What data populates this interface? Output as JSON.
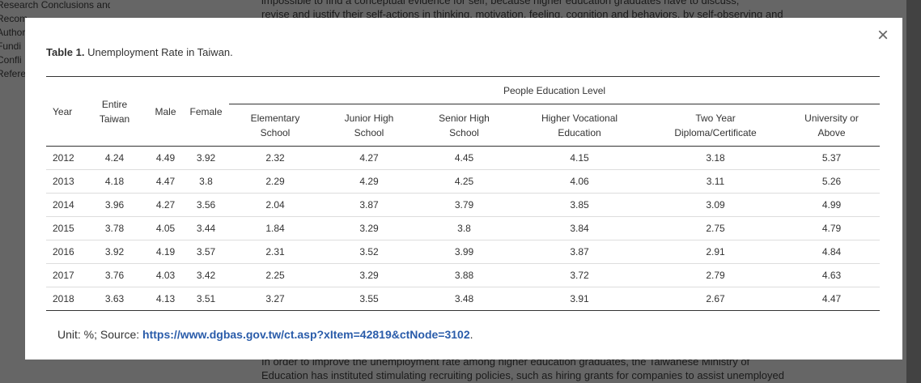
{
  "background": {
    "nav": [
      "Research Conclusions and",
      "Recom",
      "Author",
      "Fundi",
      "Confli",
      "Refere"
    ],
    "top_text": [
      "impossible to find a conceptual evidence for self, because higher education graduates have to discuss,",
      "revise and justify their self-actions in thinking, motivation, feeling, cognition and behaviors, by self-observing and"
    ],
    "bottom_text": [
      "In order to improve the unemployment rate among higher education graduates, the Taiwanese Ministry of",
      "Education has instituted stimulating recruiting policies, such as hiring grants for companies to assist unemployed"
    ]
  },
  "modal": {
    "close": "×",
    "caption": {
      "label": "Table 1.",
      "title": "Unemployment Rate in Taiwan."
    },
    "table": {
      "group_header": "People Education Level",
      "columns": [
        [
          "Year"
        ],
        [
          "Entire",
          "Taiwan"
        ],
        [
          "Male"
        ],
        [
          "Female"
        ],
        [
          "Elementary",
          "School"
        ],
        [
          "Junior High",
          "School"
        ],
        [
          "Senior High",
          "School"
        ],
        [
          "Higher Vocational",
          "Education"
        ],
        [
          "Two Year",
          "Diploma/Certificate"
        ],
        [
          "University or",
          "Above"
        ]
      ],
      "rows": [
        [
          2012,
          4.24,
          4.49,
          3.92,
          2.32,
          4.27,
          4.45,
          4.15,
          3.18,
          5.37
        ],
        [
          2013,
          4.18,
          4.47,
          3.8,
          2.29,
          4.29,
          4.25,
          4.06,
          3.11,
          5.26
        ],
        [
          2014,
          3.96,
          4.27,
          3.56,
          2.04,
          3.87,
          3.79,
          3.85,
          3.09,
          4.99
        ],
        [
          2015,
          3.78,
          4.05,
          3.44,
          1.84,
          3.29,
          3.8,
          3.84,
          2.75,
          4.79
        ],
        [
          2016,
          3.92,
          4.19,
          3.57,
          2.31,
          3.52,
          3.99,
          3.87,
          2.91,
          4.84
        ],
        [
          2017,
          3.76,
          4.03,
          3.42,
          2.25,
          3.29,
          3.88,
          3.72,
          2.79,
          4.63
        ],
        [
          2018,
          3.63,
          4.13,
          3.51,
          3.27,
          3.55,
          3.48,
          3.91,
          2.67,
          4.47
        ]
      ]
    },
    "footer": {
      "prefix": "Unit: %; Source:",
      "link": "https://www.dgbas.gov.tw/ct.asp?xItem=42819&ctNode=3102",
      "suffix": "."
    }
  }
}
